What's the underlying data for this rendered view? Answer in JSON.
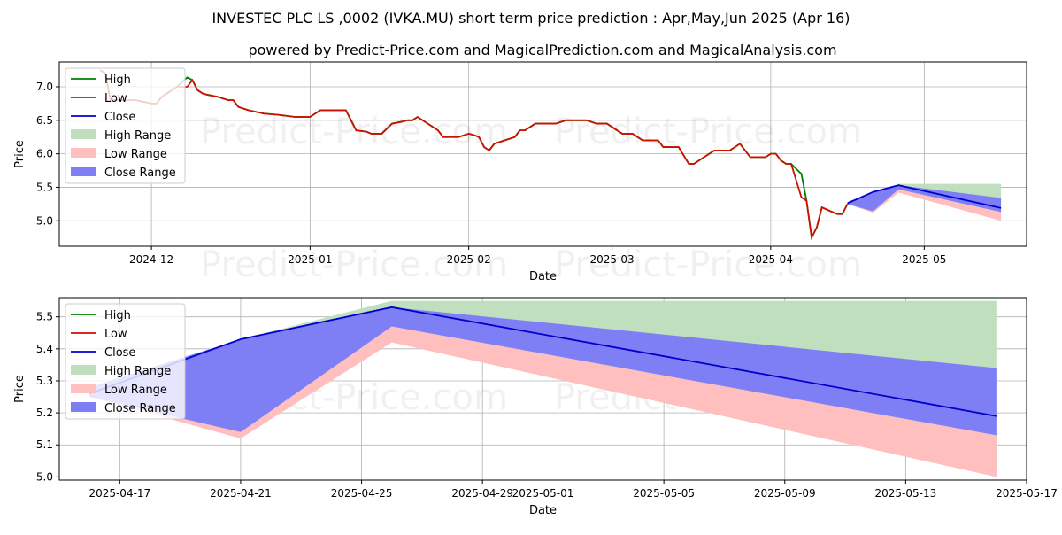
{
  "title": "INVESTEC PLC LS ,0002 (IVKA.MU) short term price prediction : Apr,May,Jun 2025 (Apr 16)",
  "subtitle": "powered by Predict-Price.com and MagicalPrediction.com and MagicalAnalysis.com",
  "watermark": "Predict-Price.com",
  "colors": {
    "high": "#008000",
    "low": "#cc1100",
    "close": "#0000cc",
    "high_range": "#bfdfbf",
    "low_range": "#ffbfbf",
    "close_range": "#7f7ff5"
  },
  "legend": {
    "high": "High",
    "low": "Low",
    "close": "Close",
    "high_range": "High Range",
    "low_range": "Low Range",
    "close_range": "Close Range"
  },
  "chart_data": [
    {
      "type": "line",
      "xlabel": "Date",
      "ylabel": "Price",
      "xlim": [
        "2024-11-13",
        "2025-05-21"
      ],
      "ylim": [
        4.62,
        7.37
      ],
      "yticks": [
        5.0,
        5.5,
        6.0,
        6.5,
        7.0
      ],
      "xticks": [
        {
          "date": "2024-12-01",
          "label": "2024-12"
        },
        {
          "date": "2025-01-01",
          "label": "2025-01"
        },
        {
          "date": "2025-02-01",
          "label": "2025-02"
        },
        {
          "date": "2025-03-01",
          "label": "2025-03"
        },
        {
          "date": "2025-04-01",
          "label": "2025-04"
        },
        {
          "date": "2025-05-01",
          "label": "2025-05"
        }
      ],
      "grid": true,
      "legend_position": "top-left",
      "history": {
        "dates": [
          "2024-11-21",
          "2024-11-22",
          "2024-11-23",
          "2024-11-25",
          "2024-11-26",
          "2024-11-28",
          "2024-12-01",
          "2024-12-02",
          "2024-12-03",
          "2024-12-05",
          "2024-12-06",
          "2024-12-08",
          "2024-12-09",
          "2024-12-10",
          "2024-12-11",
          "2024-12-12",
          "2024-12-14",
          "2024-12-16",
          "2024-12-17",
          "2024-12-18",
          "2024-12-20",
          "2024-12-23",
          "2024-12-26",
          "2024-12-29",
          "2024-12-31",
          "2025-01-01",
          "2025-01-03",
          "2025-01-05",
          "2025-01-07",
          "2025-01-08",
          "2025-01-10",
          "2025-01-12",
          "2025-01-13",
          "2025-01-15",
          "2025-01-17",
          "2025-01-19",
          "2025-01-20",
          "2025-01-21",
          "2025-01-22",
          "2025-01-24",
          "2025-01-26",
          "2025-01-27",
          "2025-01-28",
          "2025-01-30",
          "2025-02-01",
          "2025-02-02",
          "2025-02-03",
          "2025-02-04",
          "2025-02-05",
          "2025-02-06",
          "2025-02-08",
          "2025-02-10",
          "2025-02-11",
          "2025-02-12",
          "2025-02-14",
          "2025-02-16",
          "2025-02-18",
          "2025-02-20",
          "2025-02-22",
          "2025-02-24",
          "2025-02-26",
          "2025-02-28",
          "2025-03-03",
          "2025-03-05",
          "2025-03-06",
          "2025-03-07",
          "2025-03-10",
          "2025-03-11",
          "2025-03-12",
          "2025-03-13",
          "2025-03-14",
          "2025-03-16",
          "2025-03-17",
          "2025-03-19",
          "2025-03-20",
          "2025-03-21",
          "2025-03-24",
          "2025-03-26",
          "2025-03-28",
          "2025-03-31",
          "2025-04-01",
          "2025-04-02",
          "2025-04-03",
          "2025-04-04",
          "2025-04-05",
          "2025-04-07",
          "2025-04-08",
          "2025-04-09",
          "2025-04-10",
          "2025-04-11",
          "2025-04-14",
          "2025-04-15",
          "2025-04-16"
        ],
        "high": [
          7.25,
          7.2,
          6.8,
          6.8,
          6.8,
          6.8,
          6.75,
          6.75,
          6.85,
          6.95,
          7.0,
          7.14,
          7.1,
          6.95,
          6.9,
          6.88,
          6.85,
          6.8,
          6.8,
          6.7,
          6.65,
          6.6,
          6.58,
          6.55,
          6.55,
          6.55,
          6.65,
          6.65,
          6.65,
          6.65,
          6.35,
          6.33,
          6.3,
          6.3,
          6.45,
          6.48,
          6.5,
          6.5,
          6.55,
          6.45,
          6.35,
          6.25,
          6.25,
          6.25,
          6.3,
          6.28,
          6.25,
          6.1,
          6.05,
          6.15,
          6.2,
          6.25,
          6.35,
          6.35,
          6.45,
          6.45,
          6.45,
          6.5,
          6.5,
          6.5,
          6.45,
          6.45,
          6.3,
          6.3,
          6.25,
          6.2,
          6.2,
          6.1,
          6.1,
          6.1,
          6.1,
          5.85,
          5.85,
          5.95,
          6.0,
          6.05,
          6.05,
          6.15,
          5.95,
          5.95,
          6.0,
          6.0,
          5.9,
          5.85,
          5.85,
          5.7,
          5.3,
          4.75,
          4.9,
          5.2,
          5.1,
          5.1,
          5.25
        ],
        "low": [
          7.25,
          7.2,
          6.8,
          6.8,
          6.8,
          6.8,
          6.75,
          6.75,
          6.85,
          6.95,
          7.0,
          7.0,
          7.1,
          6.95,
          6.9,
          6.88,
          6.85,
          6.8,
          6.8,
          6.7,
          6.65,
          6.6,
          6.58,
          6.55,
          6.55,
          6.55,
          6.65,
          6.65,
          6.65,
          6.65,
          6.35,
          6.33,
          6.3,
          6.3,
          6.45,
          6.48,
          6.5,
          6.5,
          6.55,
          6.45,
          6.35,
          6.25,
          6.25,
          6.25,
          6.3,
          6.28,
          6.25,
          6.1,
          6.05,
          6.15,
          6.2,
          6.25,
          6.35,
          6.35,
          6.45,
          6.45,
          6.45,
          6.5,
          6.5,
          6.5,
          6.45,
          6.45,
          6.3,
          6.3,
          6.25,
          6.2,
          6.2,
          6.1,
          6.1,
          6.1,
          6.1,
          5.85,
          5.85,
          5.95,
          6.0,
          6.05,
          6.05,
          6.15,
          5.95,
          5.95,
          6.0,
          6.0,
          5.9,
          5.85,
          5.85,
          5.35,
          5.3,
          4.75,
          4.9,
          5.2,
          5.1,
          5.1,
          5.25
        ]
      },
      "prediction": {
        "dates": [
          "2025-04-16",
          "2025-04-21",
          "2025-04-26",
          "2025-05-16"
        ],
        "close": [
          5.26,
          5.43,
          5.53,
          5.19
        ],
        "high_range": [
          [
            5.25,
            5.28
          ],
          [
            5.14,
            5.43
          ],
          [
            5.47,
            5.55
          ],
          [
            5.0,
            5.55
          ]
        ],
        "low_range": [
          [
            5.25,
            5.28
          ],
          [
            5.12,
            5.14
          ],
          [
            5.42,
            5.47
          ],
          [
            5.0,
            5.13
          ]
        ],
        "close_range": [
          [
            5.25,
            5.28
          ],
          [
            5.14,
            5.43
          ],
          [
            5.47,
            5.53
          ],
          [
            5.13,
            5.34
          ]
        ]
      }
    },
    {
      "type": "line",
      "xlabel": "Date",
      "ylabel": "Price",
      "xlim": [
        "2025-04-15",
        "2025-05-17"
      ],
      "ylim": [
        4.99,
        5.56
      ],
      "yticks": [
        5.0,
        5.1,
        5.2,
        5.3,
        5.4,
        5.5
      ],
      "xticks": [
        {
          "date": "2025-04-17",
          "label": "2025-04-17"
        },
        {
          "date": "2025-04-21",
          "label": "2025-04-21"
        },
        {
          "date": "2025-04-25",
          "label": "2025-04-25"
        },
        {
          "date": "2025-04-29",
          "label": "2025-04-29"
        },
        {
          "date": "2025-05-01",
          "label": "2025-05-01"
        },
        {
          "date": "2025-05-05",
          "label": "2025-05-05"
        },
        {
          "date": "2025-05-09",
          "label": "2025-05-09"
        },
        {
          "date": "2025-05-13",
          "label": "2025-05-13"
        },
        {
          "date": "2025-05-17",
          "label": "2025-05-17"
        }
      ],
      "grid": true,
      "legend_position": "top-left",
      "prediction": {
        "dates": [
          "2025-04-16",
          "2025-04-21",
          "2025-04-26",
          "2025-05-16"
        ],
        "close": [
          5.26,
          5.43,
          5.53,
          5.19
        ],
        "high_range": [
          [
            5.25,
            5.28
          ],
          [
            5.14,
            5.43
          ],
          [
            5.47,
            5.55
          ],
          [
            5.0,
            5.55
          ]
        ],
        "low_range": [
          [
            5.25,
            5.28
          ],
          [
            5.12,
            5.14
          ],
          [
            5.42,
            5.47
          ],
          [
            5.0,
            5.13
          ]
        ],
        "close_range": [
          [
            5.25,
            5.28
          ],
          [
            5.14,
            5.43
          ],
          [
            5.47,
            5.53
          ],
          [
            5.13,
            5.34
          ]
        ]
      }
    }
  ]
}
